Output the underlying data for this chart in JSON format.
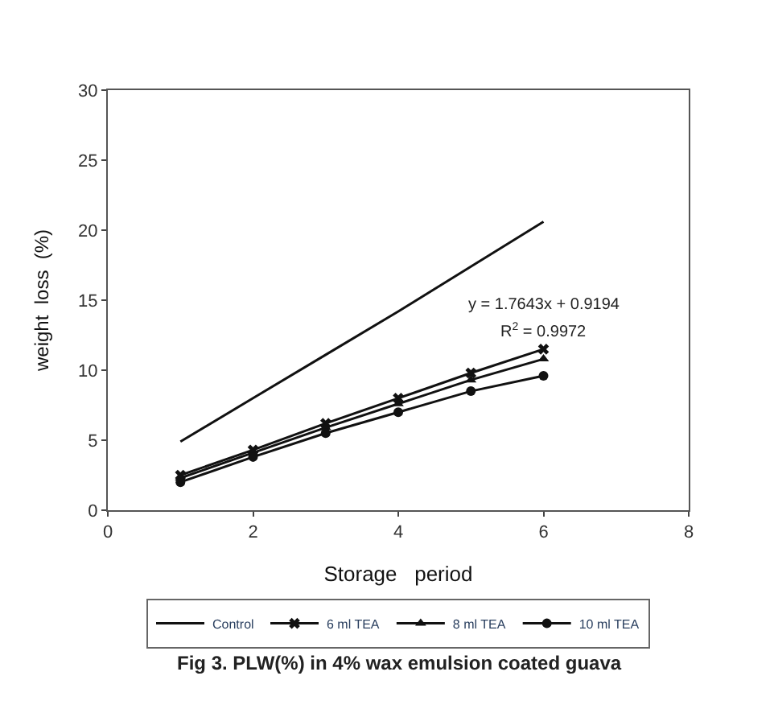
{
  "chart_data": {
    "type": "line",
    "title": "Fig 3. PLW(%) in 4% wax emulsion coated guava",
    "xlabel": "Storage   period",
    "ylabel": "weight  loss  (%)",
    "x": [
      1,
      2,
      3,
      4,
      5,
      6
    ],
    "series": [
      {
        "name": "Control",
        "color": "#111111",
        "marker": "none",
        "values": [
          4.9,
          8.0,
          11.1,
          14.2,
          17.4,
          20.6
        ]
      },
      {
        "name": "6 ml TEA",
        "color": "#111111",
        "marker": "cross",
        "values": [
          2.5,
          4.3,
          6.2,
          8.0,
          9.8,
          11.5
        ]
      },
      {
        "name": "8 ml TEA",
        "color": "#111111",
        "marker": "triangle",
        "values": [
          2.3,
          4.1,
          5.9,
          7.6,
          9.3,
          10.8
        ]
      },
      {
        "name": "10 ml TEA",
        "color": "#111111",
        "marker": "circle",
        "values": [
          2.0,
          3.8,
          5.5,
          7.0,
          8.5,
          9.6
        ]
      }
    ],
    "annotations": [
      "y = 1.7643x + 0.9194",
      "R$^{2}$ = 0.9972"
    ],
    "xlim": [
      0,
      8
    ],
    "xticks": [
      0,
      2,
      4,
      6,
      8
    ],
    "ylim": [
      0,
      30
    ],
    "yticks": [
      0,
      5,
      10,
      15,
      20,
      25,
      30
    ],
    "legend": "bottom",
    "line_style": "solid"
  }
}
